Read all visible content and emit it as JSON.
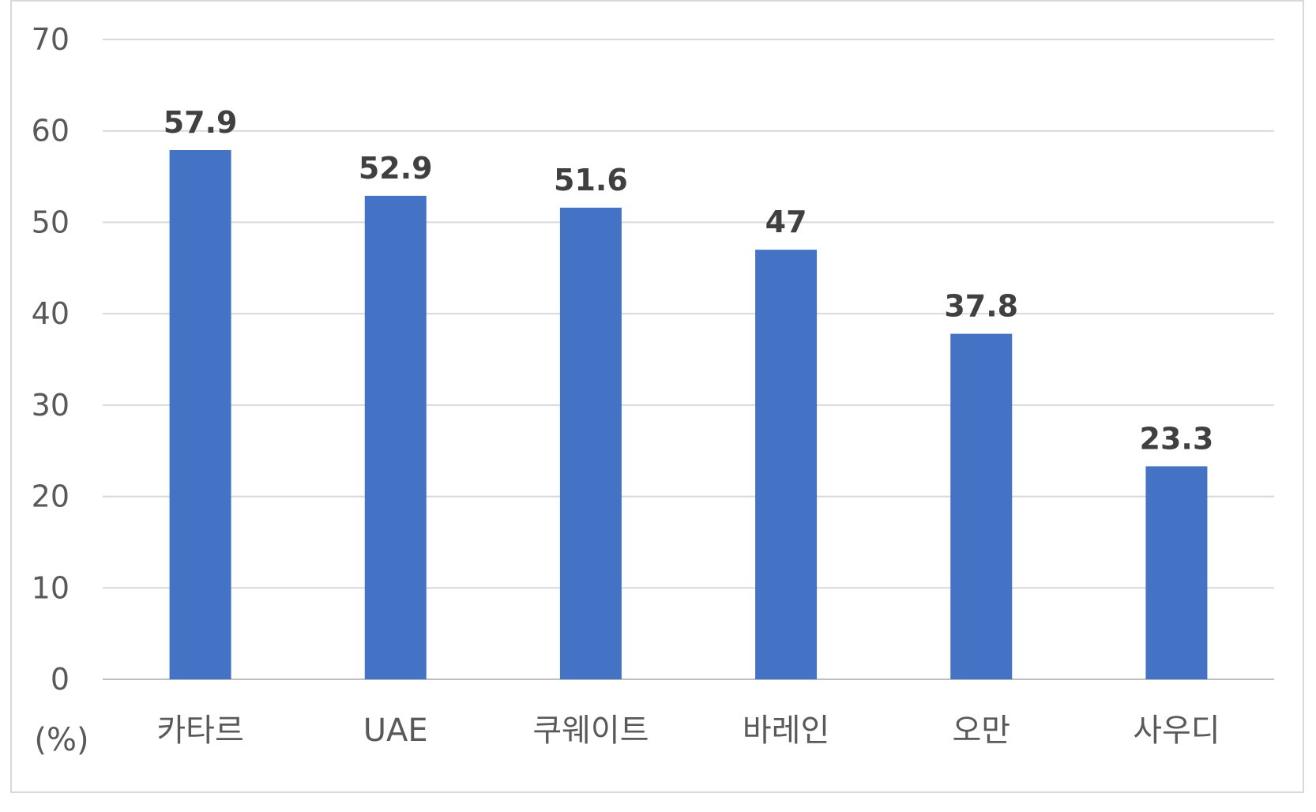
{
  "chart_data": {
    "type": "bar",
    "categories": [
      "카타르",
      "UAE",
      "쿠웨이트",
      "바레인",
      "오만",
      "사우디"
    ],
    "values": [
      57.9,
      52.9,
      51.6,
      47,
      37.8,
      23.3
    ],
    "data_labels": [
      "57.9",
      "52.9",
      "51.6",
      "47",
      "37.8",
      "23.3"
    ],
    "ylabel": "(%)",
    "ylim": [
      0,
      70
    ],
    "yticks": [
      "0",
      "10",
      "20",
      "30",
      "40",
      "50",
      "60",
      "70"
    ],
    "grid": true,
    "legend": "none",
    "bar_color": "#4472c4"
  }
}
